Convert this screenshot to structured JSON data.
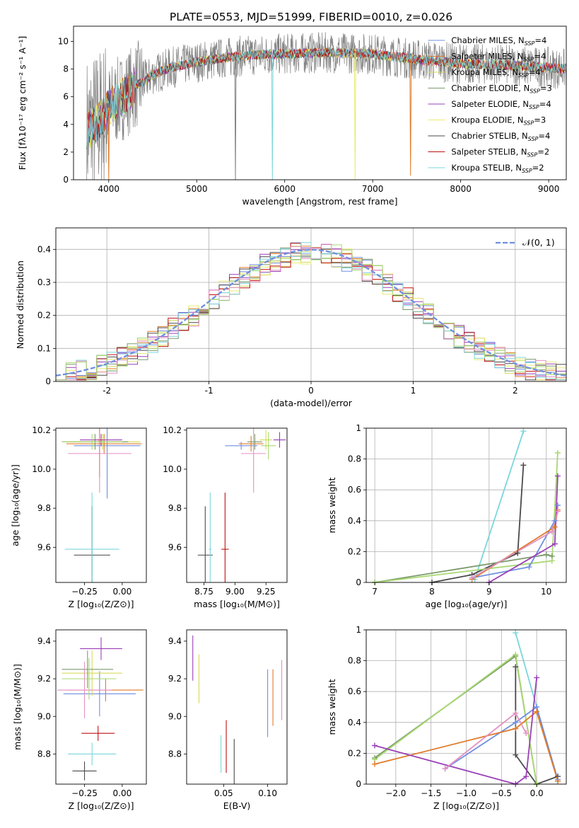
{
  "figure": {
    "title": "PLATE=0553, MJD=51999, FIBERID=0010, z=0.026"
  },
  "colors": {
    "C1": "#6f8fe0",
    "C2": "#e07b2a",
    "C3": "#d6dc58",
    "C4": "#7a9a6a",
    "C5": "#9a40b8",
    "C6": "#eaea72",
    "C7": "#4a4a4a",
    "C8": "#c01010",
    "C9": "#7ad6dc",
    "C10": "#e490c0",
    "C11": "#a8d870",
    "obs": "#808080"
  },
  "chart_data": [
    {
      "id": "spectrum",
      "type": "line",
      "xlabel": "wavelength [Angstrom, rest frame]",
      "ylabel": "Flux [fλ10⁻¹⁷ erg cm⁻² s⁻¹ A⁻¹]",
      "xlim": [
        3600,
        9200
      ],
      "ylim": [
        0,
        11.1
      ],
      "xticks": [
        4000,
        5000,
        6000,
        7000,
        8000,
        9000
      ],
      "yticks": [
        0,
        2,
        4,
        6,
        8,
        10
      ],
      "legend_position": "top-right",
      "legend": [
        {
          "label": "Chabrier MILES, N",
          "sub": "SSP",
          "tail": "=4",
          "color": "C1"
        },
        {
          "label": "Salpeter MILES, N",
          "sub": "SSP",
          "tail": "=4",
          "color": "C2"
        },
        {
          "label": "Kroupa MILES, N",
          "sub": "SSP",
          "tail": "=4",
          "color": "C3"
        },
        {
          "label": "Chabrier ELODIE, N",
          "sub": "SSP",
          "tail": "=3",
          "color": "C4"
        },
        {
          "label": "Salpeter ELODIE, N",
          "sub": "SSP",
          "tail": "=4",
          "color": "C5"
        },
        {
          "label": "Kroupa ELODIE, N",
          "sub": "SSP",
          "tail": "=3",
          "color": "C6"
        },
        {
          "label": "Chabrier STELIB, N",
          "sub": "SSP",
          "tail": "=4",
          "color": "C7"
        },
        {
          "label": "Salpeter STELIB, N",
          "sub": "SSP",
          "tail": "=2",
          "color": "C8"
        },
        {
          "label": "Kroupa STELIB, N",
          "sub": "SSP",
          "tail": "=2",
          "color": "C9"
        }
      ],
      "continuum": {
        "x": [
          3750,
          3800,
          3850,
          3900,
          3950,
          4000,
          4100,
          4200,
          4300,
          4400,
          4500,
          4700,
          5000,
          5300,
          5600,
          6000,
          6500,
          7000,
          7500,
          8000,
          8500,
          9000,
          9200
        ],
        "y": [
          3.6,
          3.7,
          4.0,
          4.3,
          4.7,
          5.2,
          5.7,
          6.2,
          6.8,
          7.1,
          7.6,
          8.1,
          8.5,
          8.8,
          9.0,
          9.1,
          9.2,
          9.1,
          8.7,
          8.4,
          8.3,
          8.1,
          8.0
        ]
      },
      "spikes": [
        {
          "x": 4000,
          "y": 0.0,
          "color": "C2"
        },
        {
          "x": 5860,
          "y": 0.0,
          "color": "C9"
        },
        {
          "x": 6800,
          "y": 0.0,
          "color": "C6"
        },
        {
          "x": 7430,
          "y": 0.3,
          "color": "C2"
        },
        {
          "x": 5440,
          "y": 0.0,
          "color": "obs"
        }
      ]
    },
    {
      "id": "residuals",
      "type": "line",
      "xlabel": "(data-model)/error",
      "ylabel": "Normed distribution",
      "xlim": [
        -2.5,
        2.5
      ],
      "ylim": [
        0,
        0.465
      ],
      "xticks": [
        -2,
        -1,
        0,
        1,
        2
      ],
      "yticks": [
        0.0,
        0.1,
        0.2,
        0.3,
        0.4
      ],
      "grid": true,
      "legend_position": "top-right",
      "reference_curve": {
        "label": "𝒩(0, 1)",
        "mean": 0,
        "sigma": 1,
        "color": "C1"
      },
      "bin_width": 0.1
    },
    {
      "id": "age-vs-Z",
      "type": "scatter",
      "xlabel": "Z [log₁₀(Z/Z⊙)]",
      "ylabel": "age  [log₁₀(age/yr)]",
      "xlim": [
        -0.44,
        0.16
      ],
      "ylim": [
        9.42,
        10.21
      ],
      "xticks": [
        -0.25,
        0.0
      ],
      "xticklabels": [
        "−0.25",
        "0.00"
      ],
      "yticks": [
        9.6,
        9.8,
        10.0,
        10.2
      ],
      "yticklabels": [
        "9.6",
        "9.8",
        "10.0",
        "10.2"
      ],
      "points": [
        {
          "x": -0.1,
          "y": 10.12,
          "xerr": 0.22,
          "yerr": 0.27,
          "color": "C1"
        },
        {
          "x": -0.12,
          "y": 10.13,
          "xerr": 0.25,
          "yerr": 0.05,
          "color": "C2"
        },
        {
          "x": -0.13,
          "y": 10.14,
          "xerr": 0.25,
          "yerr": 0.04,
          "color": "C3"
        },
        {
          "x": -0.18,
          "y": 10.14,
          "xerr": 0.22,
          "yerr": 0.04,
          "color": "C4"
        },
        {
          "x": -0.14,
          "y": 10.15,
          "xerr": 0.14,
          "yerr": 0.03,
          "color": "C5"
        },
        {
          "x": -0.2,
          "y": 10.14,
          "xerr": 0.2,
          "yerr": 0.04,
          "color": "C11"
        },
        {
          "x": -0.2,
          "y": 9.56,
          "xerr": 0.12,
          "yerr": 0.25,
          "color": "C7"
        },
        {
          "x": -0.15,
          "y": 10.15,
          "xerr": 0.01,
          "yerr": 0.19,
          "color": "C8"
        },
        {
          "x": -0.2,
          "y": 9.59,
          "xerr": 0.18,
          "yerr": 0.29,
          "color": "C9"
        },
        {
          "x": -0.15,
          "y": 10.08,
          "xerr": 0.21,
          "yerr": 0.2,
          "color": "C10"
        }
      ]
    },
    {
      "id": "age-vs-mass",
      "type": "scatter",
      "xlabel": "mass [log₁₀(M/M⊙)]",
      "ylabel": "",
      "xlim": [
        8.61,
        9.42
      ],
      "ylim": [
        9.42,
        10.21
      ],
      "xticks": [
        8.75,
        9.0,
        9.25
      ],
      "xticklabels": [
        "8.75",
        "9.00",
        "9.25"
      ],
      "yticks": [
        9.6,
        9.8,
        10.0,
        10.2
      ],
      "yticklabels": [
        "9.6",
        "9.8",
        "10.0",
        "10.2"
      ],
      "points": [
        {
          "x": 9.05,
          "y": 10.12,
          "xerr": 0.13,
          "yerr": 0.02,
          "color": "C1"
        },
        {
          "x": 9.13,
          "y": 10.13,
          "xerr": 0.1,
          "yerr": 0.04,
          "color": "C2"
        },
        {
          "x": 9.25,
          "y": 10.15,
          "xerr": 0.05,
          "yerr": 0.05,
          "color": "C3"
        },
        {
          "x": 9.16,
          "y": 10.14,
          "xerr": 0.06,
          "yerr": 0.04,
          "color": "C4"
        },
        {
          "x": 9.36,
          "y": 10.15,
          "xerr": 0.05,
          "yerr": 0.04,
          "color": "C5"
        },
        {
          "x": 9.27,
          "y": 10.12,
          "xerr": 0.06,
          "yerr": 0.07,
          "color": "C11"
        },
        {
          "x": 8.76,
          "y": 9.56,
          "xerr": 0.06,
          "yerr": 0.25,
          "color": "C7"
        },
        {
          "x": 8.92,
          "y": 9.59,
          "xerr": 0.03,
          "yerr": 0.29,
          "color": "C8"
        },
        {
          "x": 8.8,
          "y": 9.59,
          "xerr": 0.01,
          "yerr": 0.29,
          "color": "C9"
        },
        {
          "x": 9.15,
          "y": 10.08,
          "xerr": 0.1,
          "yerr": 0.2,
          "color": "C10"
        }
      ]
    },
    {
      "id": "weight-vs-age",
      "type": "line",
      "xlabel": "age  [log₁₀(age/yr)]",
      "ylabel": "mass weight",
      "xlim": [
        6.85,
        10.35
      ],
      "ylim": [
        0,
        1.0
      ],
      "xticks": [
        7,
        8,
        9,
        10
      ],
      "yticks": [
        0.0,
        0.2,
        0.4,
        0.6,
        0.8,
        1.0
      ],
      "grid": true,
      "series": [
        {
          "color": "C9",
          "x": [
            8.75,
            9.6
          ],
          "y": [
            0.02,
            0.98
          ]
        },
        {
          "color": "C7",
          "x": [
            8.0,
            8.7,
            9.5,
            9.6
          ],
          "y": [
            0.0,
            0.05,
            0.19,
            0.76
          ]
        },
        {
          "color": "C4",
          "x": [
            7.0,
            10.0,
            10.1
          ],
          "y": [
            0.0,
            0.18,
            0.17
          ]
        },
        {
          "color": "C11",
          "x": [
            7.0,
            10.1,
            10.2
          ],
          "y": [
            0.0,
            0.14,
            0.84
          ]
        },
        {
          "color": "C1",
          "x": [
            8.7,
            9.7,
            10.15,
            10.2
          ],
          "y": [
            0.03,
            0.1,
            0.4,
            0.5
          ]
        },
        {
          "color": "C2",
          "x": [
            8.7,
            10.15,
            10.2
          ],
          "y": [
            0.02,
            0.36,
            0.47
          ]
        },
        {
          "color": "C5",
          "x": [
            9.0,
            10.15,
            10.2
          ],
          "y": [
            0.0,
            0.25,
            0.69
          ]
        },
        {
          "color": "C10",
          "x": [
            8.7,
            10.1,
            10.2
          ],
          "y": [
            0.03,
            0.33,
            0.46
          ]
        }
      ]
    },
    {
      "id": "mass-vs-Z",
      "type": "scatter",
      "xlabel": "Z [log₁₀(Z/Z⊙)]",
      "ylabel": "mass [log₁₀(M/M⊙)]",
      "xlim": [
        -0.44,
        0.16
      ],
      "ylim": [
        8.64,
        9.46
      ],
      "xticks": [
        -0.25,
        0.0
      ],
      "xticklabels": [
        "−0.25",
        "0.00"
      ],
      "yticks": [
        8.8,
        9.0,
        9.2,
        9.4
      ],
      "yticklabels": [
        "8.8",
        "9.0",
        "9.2",
        "9.4"
      ],
      "points": [
        {
          "x": -0.15,
          "y": 9.12,
          "xerr": 0.24,
          "yerr": 0.12,
          "color": "C1"
        },
        {
          "x": -0.11,
          "y": 9.14,
          "xerr": 0.25,
          "yerr": 0.06,
          "color": "C2"
        },
        {
          "x": -0.2,
          "y": 9.23,
          "xerr": 0.2,
          "yerr": 0.12,
          "color": "C3"
        },
        {
          "x": -0.23,
          "y": 9.25,
          "xerr": 0.17,
          "yerr": 0.1,
          "color": "C4"
        },
        {
          "x": -0.14,
          "y": 9.36,
          "xerr": 0.14,
          "yerr": 0.06,
          "color": "C5"
        },
        {
          "x": -0.22,
          "y": 9.2,
          "xerr": 0.18,
          "yerr": 0.11,
          "color": "C11"
        },
        {
          "x": -0.25,
          "y": 8.71,
          "xerr": 0.08,
          "yerr": 0.05,
          "color": "C7"
        },
        {
          "x": -0.16,
          "y": 8.91,
          "xerr": 0.11,
          "yerr": 0.04,
          "color": "C8"
        },
        {
          "x": -0.2,
          "y": 8.8,
          "xerr": 0.16,
          "yerr": 0.06,
          "color": "C9"
        },
        {
          "x": -0.25,
          "y": 9.14,
          "xerr": 0.18,
          "yerr": 0.15,
          "color": "C10"
        }
      ]
    },
    {
      "id": "mass-vs-ebv",
      "type": "scatter",
      "xlabel": "E(B-V)",
      "ylabel": "",
      "xlim": [
        0.008,
        0.122
      ],
      "ylim": [
        8.64,
        9.46
      ],
      "xticks": [
        0.05,
        0.1
      ],
      "xticklabels": [
        "0.05",
        "0.10"
      ],
      "yticks": [
        8.8,
        9.0,
        9.2,
        9.4
      ],
      "yticklabels": [
        "8.8",
        "9.0",
        "9.2",
        "9.4"
      ],
      "points": [
        {
          "x": 0.1,
          "y": 9.07,
          "yerr": 0.18,
          "color": "C1"
        },
        {
          "x": 0.106,
          "y": 9.1,
          "yerr": 0.15,
          "color": "C2"
        },
        {
          "x": 0.022,
          "y": 9.2,
          "yerr": 0.13,
          "color": "C3"
        },
        {
          "x": 0.015,
          "y": 9.31,
          "yerr": 0.12,
          "color": "C5"
        },
        {
          "x": 0.062,
          "y": 8.72,
          "yerr": 0.16,
          "color": "C7"
        },
        {
          "x": 0.053,
          "y": 8.84,
          "yerr": 0.14,
          "color": "C8"
        },
        {
          "x": 0.047,
          "y": 8.8,
          "yerr": 0.1,
          "color": "C9"
        },
        {
          "x": 0.116,
          "y": 9.14,
          "yerr": 0.16,
          "color": "C10"
        }
      ]
    },
    {
      "id": "weight-vs-Z",
      "type": "line",
      "xlabel": "Z [log₁₀(Z/Z⊙)]",
      "ylabel": "mass weight",
      "xlim": [
        -2.42,
        0.42
      ],
      "ylim": [
        0,
        1.0
      ],
      "xticks": [
        -2.0,
        -1.5,
        -1.0,
        -0.5,
        0.0
      ],
      "xticklabels": [
        "−2.0",
        "−1.5",
        "−1.0",
        "−0.5",
        "0.0"
      ],
      "yticks": [
        0.0,
        0.2,
        0.4,
        0.6,
        0.8,
        1.0
      ],
      "grid": true,
      "series": [
        {
          "color": "C9",
          "x": [
            -0.3,
            0.3
          ],
          "y": [
            0.98,
            0.02
          ]
        },
        {
          "color": "C7",
          "x": [
            -0.3,
            -0.3,
            0.0,
            0.3
          ],
          "y": [
            0.76,
            0.19,
            0.0,
            0.05
          ]
        },
        {
          "color": "C4",
          "x": [
            -2.3,
            -0.3,
            0.0
          ],
          "y": [
            0.17,
            0.83,
            0.0
          ]
        },
        {
          "color": "C11",
          "x": [
            -2.3,
            -0.3,
            0.0
          ],
          "y": [
            0.16,
            0.84,
            0.0
          ]
        },
        {
          "color": "C1",
          "x": [
            -1.3,
            -0.3,
            0.0,
            0.3
          ],
          "y": [
            0.1,
            0.4,
            0.5,
            0.03
          ]
        },
        {
          "color": "C2",
          "x": [
            -2.3,
            -0.3,
            0.0,
            0.3
          ],
          "y": [
            0.13,
            0.36,
            0.47,
            0.02
          ]
        },
        {
          "color": "C5",
          "x": [
            -2.3,
            -0.3,
            -0.15,
            0.0
          ],
          "y": [
            0.25,
            0.0,
            0.05,
            0.69
          ]
        },
        {
          "color": "C10",
          "x": [
            -1.3,
            -0.3,
            -0.15
          ],
          "y": [
            0.1,
            0.46,
            0.33
          ]
        }
      ]
    }
  ]
}
